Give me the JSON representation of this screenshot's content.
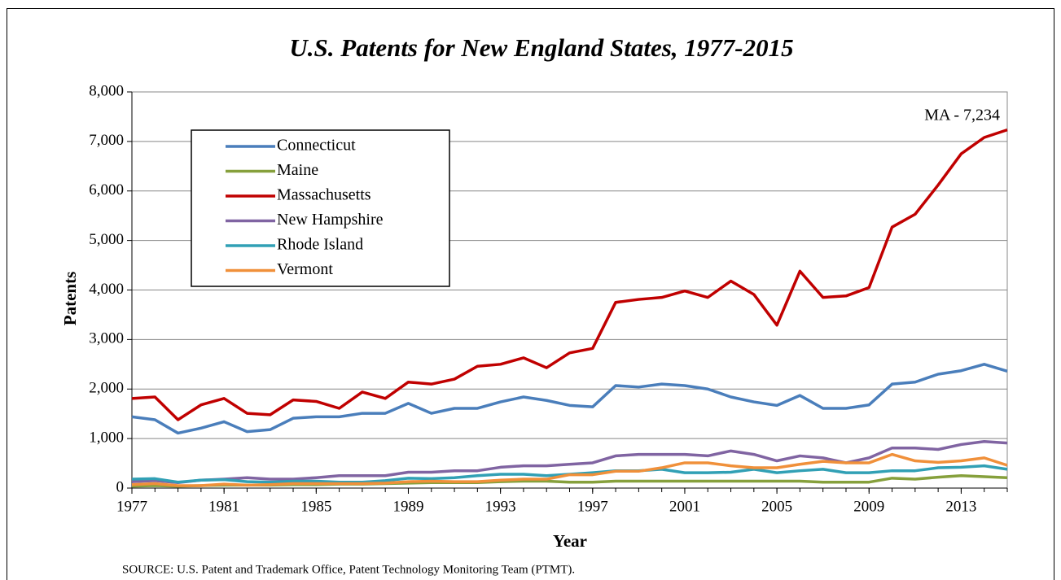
{
  "chart_data": {
    "type": "line",
    "title": "U.S. Patents for New England States, 1977-2015",
    "xlabel": "Year",
    "ylabel": "Patents",
    "annotation": "MA - 7,234",
    "source": "SOURCE: U.S. Patent and Trademark Office, Patent Technology Monitoring Team (PTMT).",
    "x": [
      1977,
      1978,
      1979,
      1980,
      1981,
      1982,
      1983,
      1984,
      1985,
      1986,
      1987,
      1988,
      1989,
      1990,
      1991,
      1992,
      1993,
      1994,
      1995,
      1996,
      1997,
      1998,
      1999,
      2000,
      2001,
      2002,
      2003,
      2004,
      2005,
      2006,
      2007,
      2008,
      2009,
      2010,
      2011,
      2012,
      2013,
      2014,
      2015
    ],
    "xlim": [
      1977,
      2015
    ],
    "xticks": [
      1977,
      1981,
      1985,
      1989,
      1993,
      1997,
      2001,
      2005,
      2009,
      2013
    ],
    "ylim": [
      0,
      8000
    ],
    "yticks": [
      0,
      {
        "value": 1000,
        "label": "1,000"
      },
      {
        "value": 2000,
        "label": "2,000"
      },
      {
        "value": 3000,
        "label": "3,000"
      },
      {
        "value": 4000,
        "label": "4,000"
      },
      {
        "value": 5000,
        "label": "5,000"
      },
      {
        "value": 6000,
        "label": "6,000"
      },
      {
        "value": 7000,
        "label": "7,000"
      },
      {
        "value": 8000,
        "label": "8,000"
      }
    ],
    "grid": true,
    "legend": "upper left",
    "series": [
      {
        "name": "Connecticut",
        "color": "#4a7ebb",
        "values": [
          1440,
          1380,
          1110,
          1210,
          1340,
          1140,
          1180,
          1410,
          1440,
          1440,
          1510,
          1510,
          1710,
          1510,
          1610,
          1610,
          1740,
          1840,
          1770,
          1670,
          1640,
          2070,
          2040,
          2100,
          2070,
          2000,
          1840,
          1740,
          1670,
          1870,
          1610,
          1610,
          1680,
          2100,
          2140,
          2300,
          2370,
          2500,
          2360
        ]
      },
      {
        "name": "Maine",
        "color": "#86a03c",
        "values": [
          40,
          50,
          40,
          50,
          60,
          60,
          60,
          70,
          70,
          80,
          80,
          90,
          100,
          110,
          110,
          110,
          130,
          140,
          140,
          120,
          120,
          140,
          140,
          140,
          140,
          140,
          140,
          140,
          140,
          140,
          120,
          120,
          120,
          200,
          180,
          220,
          250,
          230,
          210
        ]
      },
      {
        "name": "Massachusetts",
        "color": "#c00000",
        "values": [
          1810,
          1840,
          1380,
          1680,
          1810,
          1510,
          1480,
          1780,
          1750,
          1610,
          1940,
          1810,
          2140,
          2100,
          2200,
          2460,
          2500,
          2630,
          2430,
          2730,
          2820,
          3750,
          3810,
          3850,
          3980,
          3850,
          4180,
          3910,
          3290,
          4380,
          3850,
          3880,
          4050,
          5270,
          5530,
          6120,
          6750,
          7080,
          7234
        ]
      },
      {
        "name": "New Hampshire",
        "color": "#8064a2",
        "values": [
          130,
          150,
          110,
          160,
          180,
          210,
          180,
          180,
          210,
          250,
          250,
          250,
          320,
          320,
          350,
          350,
          420,
          450,
          450,
          480,
          510,
          650,
          680,
          680,
          680,
          650,
          750,
          680,
          550,
          650,
          610,
          510,
          610,
          810,
          810,
          780,
          880,
          940,
          910
        ]
      },
      {
        "name": "Rhode Island",
        "color": "#31a0b5",
        "values": [
          180,
          190,
          120,
          160,
          170,
          130,
          120,
          140,
          140,
          120,
          120,
          150,
          200,
          190,
          210,
          250,
          280,
          280,
          250,
          280,
          310,
          350,
          350,
          380,
          310,
          310,
          320,
          380,
          310,
          350,
          380,
          310,
          310,
          350,
          350,
          410,
          420,
          450,
          380
        ]
      },
      {
        "name": "Vermont",
        "color": "#f0903a",
        "values": [
          70,
          90,
          50,
          50,
          80,
          60,
          70,
          90,
          90,
          90,
          90,
          100,
          130,
          140,
          130,
          130,
          160,
          180,
          180,
          270,
          270,
          340,
          340,
          410,
          510,
          510,
          450,
          410,
          410,
          480,
          540,
          510,
          510,
          680,
          550,
          520,
          550,
          610,
          460
        ]
      }
    ]
  }
}
